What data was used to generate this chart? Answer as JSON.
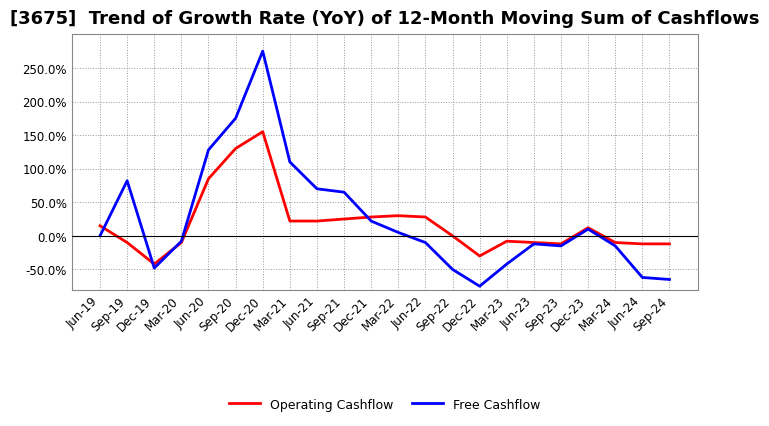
{
  "title": "[3675]  Trend of Growth Rate (YoY) of 12-Month Moving Sum of Cashflows",
  "labels": [
    "Jun-19",
    "Sep-19",
    "Dec-19",
    "Mar-20",
    "Jun-20",
    "Sep-20",
    "Dec-20",
    "Mar-21",
    "Jun-21",
    "Sep-21",
    "Dec-21",
    "Mar-22",
    "Jun-22",
    "Sep-22",
    "Dec-22",
    "Mar-23",
    "Jun-23",
    "Sep-23",
    "Dec-23",
    "Mar-24",
    "Jun-24",
    "Sep-24"
  ],
  "operating_cashflow": [
    0.15,
    -0.1,
    -0.42,
    -0.1,
    0.85,
    1.3,
    1.55,
    0.22,
    0.22,
    0.25,
    0.28,
    0.3,
    0.28,
    0.0,
    -0.3,
    -0.08,
    -0.1,
    -0.12,
    0.12,
    -0.1,
    -0.12,
    -0.12
  ],
  "free_cashflow": [
    0.0,
    0.82,
    -0.48,
    -0.08,
    1.28,
    1.75,
    2.75,
    1.1,
    0.7,
    0.65,
    0.22,
    0.05,
    -0.1,
    -0.5,
    -0.75,
    -0.42,
    -0.12,
    -0.15,
    0.1,
    -0.15,
    -0.62,
    -0.65
  ],
  "operating_color": "#FF0000",
  "free_color": "#0000FF",
  "ylim_min": -0.8,
  "ylim_max": 3.0,
  "yticks": [
    -0.5,
    0.0,
    0.5,
    1.0,
    1.5,
    2.0,
    2.5
  ],
  "background_color": "#FFFFFF",
  "title_fontsize": 13,
  "legend_fontsize": 9,
  "tick_fontsize": 8.5
}
